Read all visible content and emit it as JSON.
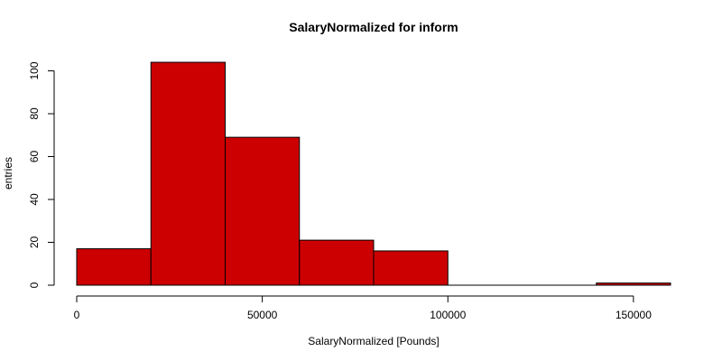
{
  "chart_data": {
    "type": "bar",
    "subtype": "histogram",
    "title": "SalaryNormalized for inform",
    "xlabel": "SalaryNormalized [Pounds]",
    "ylabel": "entries",
    "bins": [
      {
        "x0": 0,
        "x1": 20000,
        "count": 17
      },
      {
        "x0": 20000,
        "x1": 40000,
        "count": 104
      },
      {
        "x0": 40000,
        "x1": 60000,
        "count": 69
      },
      {
        "x0": 60000,
        "x1": 80000,
        "count": 21
      },
      {
        "x0": 80000,
        "x1": 100000,
        "count": 16
      },
      {
        "x0": 100000,
        "x1": 120000,
        "count": 0
      },
      {
        "x0": 120000,
        "x1": 140000,
        "count": 0
      },
      {
        "x0": 140000,
        "x1": 160000,
        "count": 1
      }
    ],
    "xlim": [
      0,
      160000
    ],
    "ylim": [
      0,
      104
    ],
    "xticks": [
      0,
      50000,
      100000,
      150000
    ],
    "xtick_labels": [
      "0",
      "50000",
      "100000",
      "150000"
    ],
    "yticks": [
      0,
      20,
      40,
      60,
      80,
      100
    ],
    "ytick_labels": [
      "0",
      "20",
      "40",
      "60",
      "80",
      "100"
    ],
    "bar_color": "#cc0000",
    "grid": false,
    "legend": "none"
  }
}
